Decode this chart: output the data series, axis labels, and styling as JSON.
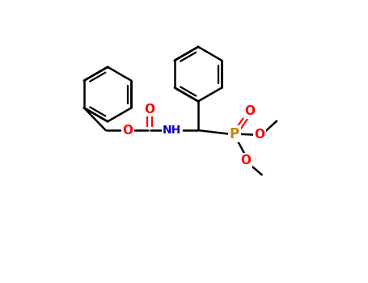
{
  "background_color": "#ffffff",
  "line_color": "#000000",
  "oxygen_color": "#ff0000",
  "nitrogen_color": "#0000cc",
  "phosphorus_color": "#cc8800",
  "bond_width": 1.8,
  "figsize": [
    4.55,
    3.5
  ],
  "dpi": 100,
  "xlim": [
    -1.5,
    8.5
  ],
  "ylim": [
    -2.5,
    4.5
  ]
}
